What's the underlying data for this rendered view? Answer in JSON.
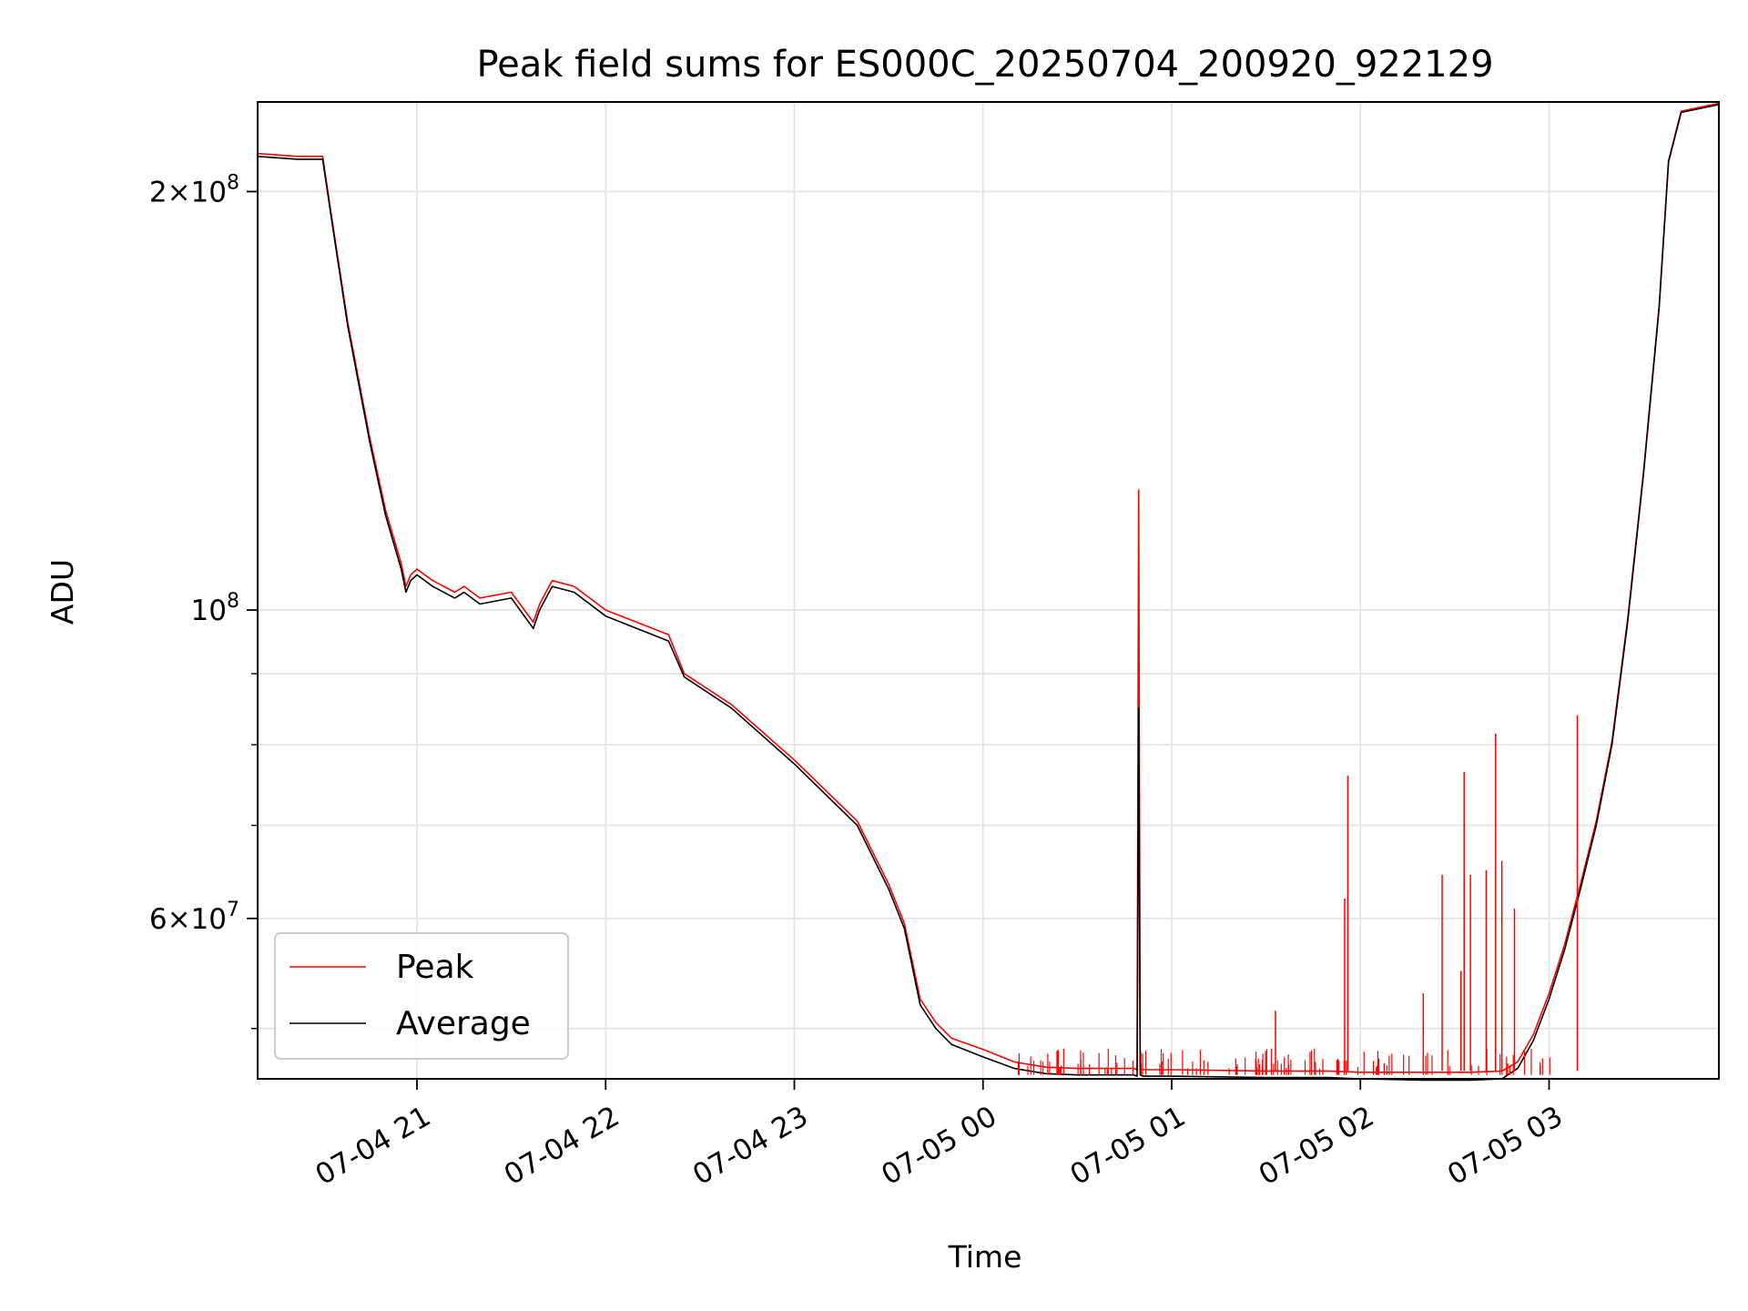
{
  "chart_data": {
    "type": "line",
    "title": "Peak field sums for ES000C_20250704_200920_922129",
    "xlabel": "Time",
    "ylabel": "ADU",
    "xscale": "time",
    "yscale": "log",
    "grid": true,
    "legend_position": "lower-left",
    "xlim": [
      "2025-07-04 20:09:20",
      "2025-07-05 03:54:00"
    ],
    "ylim": [
      46000000,
      232000000
    ],
    "x_ticks": [
      {
        "t": "2025-07-04 21:00",
        "label": "07-04 21"
      },
      {
        "t": "2025-07-04 22:00",
        "label": "07-04 22"
      },
      {
        "t": "2025-07-04 23:00",
        "label": "07-04 23"
      },
      {
        "t": "2025-07-05 00:00",
        "label": "07-05 00"
      },
      {
        "t": "2025-07-05 01:00",
        "label": "07-05 01"
      },
      {
        "t": "2025-07-05 02:00",
        "label": "07-05 02"
      },
      {
        "t": "2025-07-05 03:00",
        "label": "07-05 03"
      }
    ],
    "y_major_ticks": [
      {
        "v": 60000000,
        "mant": "6",
        "exp": "7"
      },
      {
        "v": 100000000,
        "mant": "",
        "exp": "8"
      },
      {
        "v": 200000000,
        "mant": "2",
        "exp": "8"
      }
    ],
    "y_minor_ticks": [
      50000000,
      70000000,
      80000000,
      90000000
    ],
    "series": [
      {
        "name": "Average",
        "color": "#000000",
        "x": [
          "2025-07-04 20:09:20",
          "2025-07-04 20:22:00",
          "2025-07-04 20:30:00",
          "2025-07-04 20:33:00",
          "2025-07-04 20:38:00",
          "2025-07-04 20:45:00",
          "2025-07-04 20:50:00",
          "2025-07-04 20:55:00",
          "2025-07-04 20:56:30",
          "2025-07-04 20:58:00",
          "2025-07-04 21:00:00",
          "2025-07-04 21:05:00",
          "2025-07-04 21:12:00",
          "2025-07-04 21:15:00",
          "2025-07-04 21:20:00",
          "2025-07-04 21:30:00",
          "2025-07-04 21:37:00",
          "2025-07-04 21:39:00",
          "2025-07-04 21:43:00",
          "2025-07-04 21:50:00",
          "2025-07-04 22:00:00",
          "2025-07-04 22:20:00",
          "2025-07-04 22:25:00",
          "2025-07-04 22:40:00",
          "2025-07-04 23:00:00",
          "2025-07-04 23:20:00",
          "2025-07-04 23:30:00",
          "2025-07-04 23:35:00",
          "2025-07-04 23:40:00",
          "2025-07-04 23:45:00",
          "2025-07-04 23:50:00",
          "2025-07-05 00:00:00",
          "2025-07-05 00:10:00",
          "2025-07-05 00:20:00",
          "2025-07-05 00:30:00",
          "2025-07-05 00:48:00",
          "2025-07-05 00:49:00",
          "2025-07-05 00:49:30",
          "2025-07-05 00:50:00",
          "2025-07-05 00:51:00",
          "2025-07-05 01:00:00",
          "2025-07-05 01:30:00",
          "2025-07-05 01:50:00",
          "2025-07-05 02:00:00",
          "2025-07-05 02:20:00",
          "2025-07-05 02:35:00",
          "2025-07-05 02:45:00",
          "2025-07-05 02:50:00",
          "2025-07-05 02:55:00",
          "2025-07-05 03:00:00",
          "2025-07-05 03:05:00",
          "2025-07-05 03:10:00",
          "2025-07-05 03:15:00",
          "2025-07-05 03:20:00",
          "2025-07-05 03:25:00",
          "2025-07-05 03:30:00",
          "2025-07-05 03:35:00",
          "2025-07-05 03:38:00",
          "2025-07-05 03:42:00",
          "2025-07-05 03:54:00"
        ],
        "y": [
          212000000,
          211000000,
          211000000,
          190000000,
          160000000,
          132000000,
          117000000,
          107000000,
          103000000,
          105000000,
          106000000,
          104000000,
          102000000,
          103000000,
          101000000,
          102000000,
          97000000,
          100000000,
          104000000,
          103000000,
          99000000,
          95000000,
          89500000,
          85000000,
          77500000,
          70000000,
          63000000,
          59000000,
          52000000,
          50000000,
          48700000,
          47700000,
          46800000,
          46400000,
          46300000,
          46300000,
          46200000,
          85000000,
          46300000,
          46200000,
          46200000,
          46100000,
          46100000,
          46000000,
          45900000,
          45900000,
          46000000,
          46800000,
          49000000,
          52500000,
          57000000,
          63000000,
          70000000,
          80000000,
          98000000,
          125000000,
          165000000,
          210000000,
          228000000,
          231000000
        ]
      },
      {
        "name": "Peak",
        "color": "#ff0000",
        "x": [
          "2025-07-04 20:09:20",
          "2025-07-04 20:22:00",
          "2025-07-04 20:30:00",
          "2025-07-04 20:33:00",
          "2025-07-04 20:38:00",
          "2025-07-04 20:45:00",
          "2025-07-04 20:50:00",
          "2025-07-04 20:55:00",
          "2025-07-04 20:56:30",
          "2025-07-04 20:58:00",
          "2025-07-04 21:00:00",
          "2025-07-04 21:05:00",
          "2025-07-04 21:12:00",
          "2025-07-04 21:15:00",
          "2025-07-04 21:20:00",
          "2025-07-04 21:30:00",
          "2025-07-04 21:37:00",
          "2025-07-04 21:39:00",
          "2025-07-04 21:43:00",
          "2025-07-04 21:50:00",
          "2025-07-04 22:00:00",
          "2025-07-04 22:20:00",
          "2025-07-04 22:25:00",
          "2025-07-04 22:40:00",
          "2025-07-04 23:00:00",
          "2025-07-04 23:20:00",
          "2025-07-04 23:30:00",
          "2025-07-04 23:35:00",
          "2025-07-04 23:40:00",
          "2025-07-04 23:45:00",
          "2025-07-04 23:50:00",
          "2025-07-05 00:00:00",
          "2025-07-05 00:10:00",
          "2025-07-05 00:20:00",
          "2025-07-05 00:30:00",
          "2025-07-05 00:48:00",
          "2025-07-05 00:49:00",
          "2025-07-05 00:49:30",
          "2025-07-05 00:50:00",
          "2025-07-05 00:51:00",
          "2025-07-05 01:00:00",
          "2025-07-05 01:30:00",
          "2025-07-05 01:50:00",
          "2025-07-05 02:00:00",
          "2025-07-05 02:20:00",
          "2025-07-05 02:35:00",
          "2025-07-05 02:45:00",
          "2025-07-05 02:50:00",
          "2025-07-05 02:55:00",
          "2025-07-05 03:00:00",
          "2025-07-05 03:05:00",
          "2025-07-05 03:10:00",
          "2025-07-05 03:15:00",
          "2025-07-05 03:20:00",
          "2025-07-05 03:25:00",
          "2025-07-05 03:30:00",
          "2025-07-05 03:35:00",
          "2025-07-05 03:38:00",
          "2025-07-05 03:42:00",
          "2025-07-05 03:54:00"
        ],
        "y": [
          213000000,
          212000000,
          212000000,
          191000000,
          161000000,
          133000000,
          118000000,
          108000000,
          104000000,
          106000000,
          107000000,
          105000000,
          103000000,
          104000000,
          102000000,
          103000000,
          98000000,
          101000000,
          105000000,
          104000000,
          100000000,
          96000000,
          90000000,
          85500000,
          78000000,
          70500000,
          63500000,
          59500000,
          52500000,
          50500000,
          49200000,
          48300000,
          47300000,
          46900000,
          46800000,
          46800000,
          46700000,
          122000000,
          46800000,
          46700000,
          46700000,
          46600000,
          46600000,
          46500000,
          46500000,
          46500000,
          46600000,
          47300000,
          49500000,
          53000000,
          57500000,
          63500000,
          70500000,
          80500000,
          98500000,
          125500000,
          165500000,
          210500000,
          228500000,
          231500000
        ]
      }
    ],
    "spikes": [
      {
        "t": "2025-07-05 01:33:00",
        "y": 51500000
      },
      {
        "t": "2025-07-05 01:55:00",
        "y": 62000000
      },
      {
        "t": "2025-07-05 01:56:00",
        "y": 76000000
      },
      {
        "t": "2025-07-05 02:20:00",
        "y": 53000000
      },
      {
        "t": "2025-07-05 02:26:00",
        "y": 64500000
      },
      {
        "t": "2025-07-05 02:32:00",
        "y": 55000000
      },
      {
        "t": "2025-07-05 02:33:00",
        "y": 76500000
      },
      {
        "t": "2025-07-05 02:35:00",
        "y": 64500000
      },
      {
        "t": "2025-07-05 02:40:00",
        "y": 65000000
      },
      {
        "t": "2025-07-05 02:43:00",
        "y": 81500000
      },
      {
        "t": "2025-07-05 02:45:00",
        "y": 66000000
      },
      {
        "t": "2025-07-05 02:49:00",
        "y": 61000000
      },
      {
        "t": "2025-07-05 03:09:00",
        "y": 84000000
      }
    ]
  }
}
